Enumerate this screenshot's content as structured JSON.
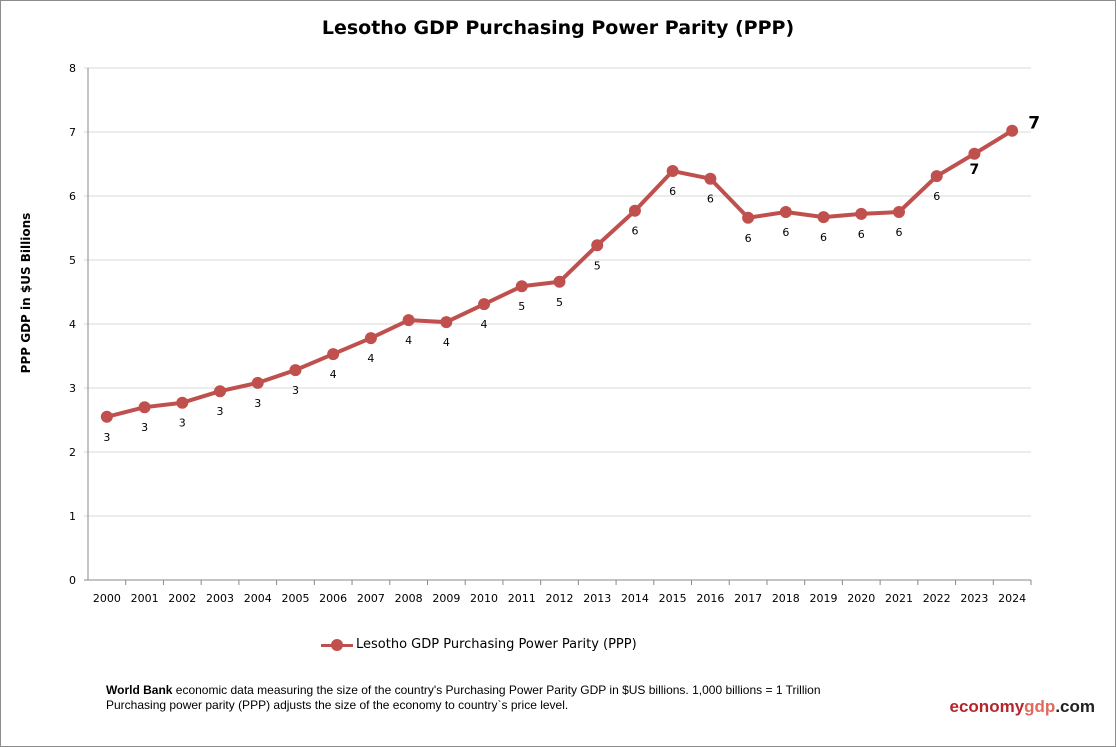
{
  "chart_data": {
    "type": "line",
    "title": "Lesotho GDP Purchasing Power Parity (PPP)",
    "xlabel": "",
    "ylabel": "PPP GDP in $US Billions",
    "ylim": [
      0,
      8
    ],
    "yticks": [
      "0",
      "1",
      "2",
      "3",
      "4",
      "5",
      "6",
      "7",
      "8"
    ],
    "grid": true,
    "legend_position": "bottom",
    "categories": [
      "2000",
      "2001",
      "2002",
      "2003",
      "2004",
      "2005",
      "2006",
      "2007",
      "2008",
      "2009",
      "2010",
      "2011",
      "2012",
      "2013",
      "2014",
      "2015",
      "2016",
      "2017",
      "2018",
      "2019",
      "2020",
      "2021",
      "2022",
      "2023",
      "2024"
    ],
    "series": [
      {
        "name": "Lesotho GDP Purchasing Power Parity (PPP)",
        "color": "#c0504d",
        "values": [
          2.55,
          2.7,
          2.77,
          2.95,
          3.08,
          3.28,
          3.53,
          3.78,
          4.06,
          4.03,
          4.31,
          4.59,
          4.66,
          5.23,
          5.77,
          6.39,
          6.27,
          5.66,
          5.75,
          5.67,
          5.72,
          5.75,
          6.31,
          6.66,
          7.02
        ],
        "data_labels": [
          "3",
          "3",
          "3",
          "3",
          "3",
          "3",
          "4",
          "4",
          "4",
          "4",
          "4",
          "5",
          "5",
          "5",
          "6",
          "6",
          "6",
          "6",
          "6",
          "6",
          "6",
          "6",
          "6",
          "7",
          "7"
        ]
      }
    ]
  },
  "note": {
    "bold": "World Bank",
    "line1": " economic data  measuring the size of the country's Purchasing Power Parity GDP in $US billions. 1,000 billions = 1 Trillion",
    "line2": "Purchasing power parity (PPP) adjusts the size of the economy to country`s price level."
  },
  "logo": {
    "part1": "economy",
    "part2": "gdp",
    "part3": ".com"
  }
}
